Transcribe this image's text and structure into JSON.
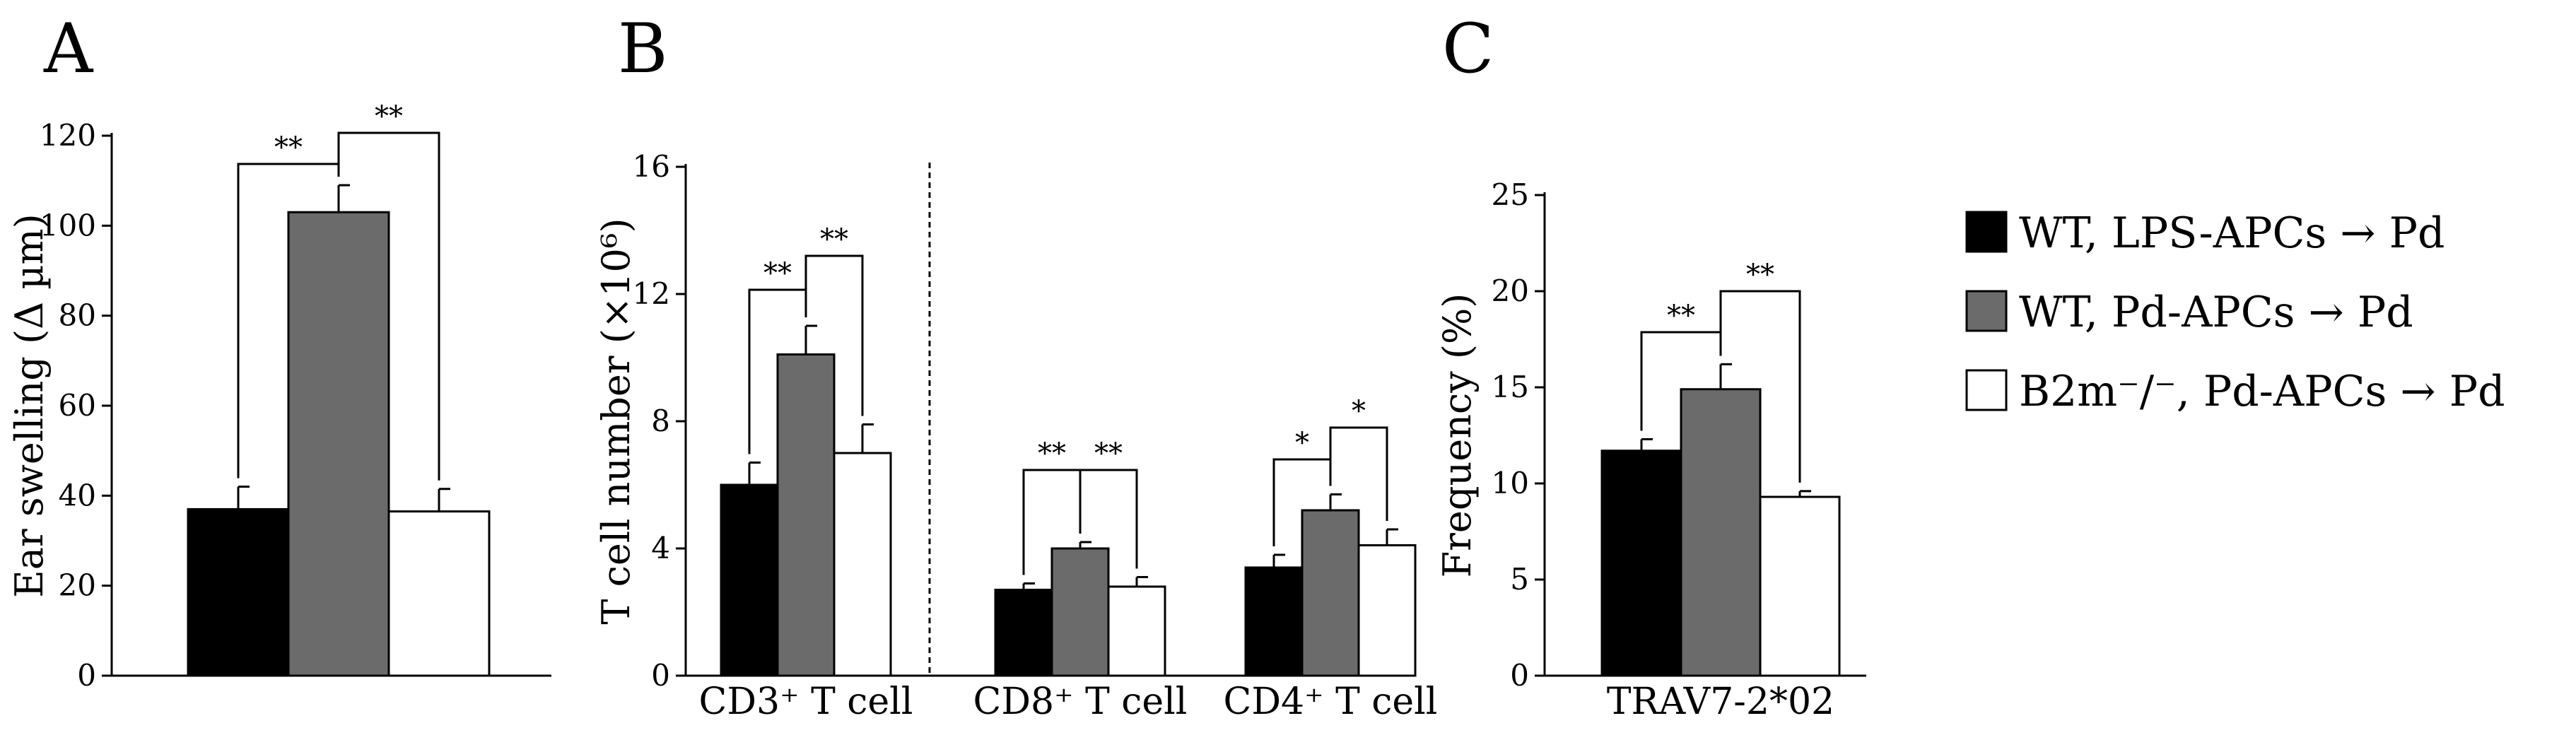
{
  "colors": {
    "black": "#000000",
    "gray": "#6b6b6b",
    "white": "#ffffff"
  },
  "legend": [
    {
      "label": "WT, LPS-APCs → Pd",
      "color": "#000000"
    },
    {
      "label": "WT, Pd-APCs → Pd",
      "color": "#6b6b6b"
    },
    {
      "label": "B2m⁻/⁻, Pd-APCs → Pd",
      "color": "#ffffff"
    }
  ],
  "chart_data": [
    {
      "panel": "A",
      "type": "bar",
      "ylabel": "Ear swelling (Δ µm)",
      "ylim": [
        0,
        120
      ],
      "yticks": [
        0,
        20,
        40,
        60,
        80,
        100,
        120
      ],
      "categories": [
        ""
      ],
      "series": [
        {
          "name": "WT, LPS-APCs → Pd",
          "values": [
            37
          ],
          "errors": [
            5
          ]
        },
        {
          "name": "WT, Pd-APCs → Pd",
          "values": [
            103
          ],
          "errors": [
            6
          ]
        },
        {
          "name": "B2m-/-, Pd-APCs → Pd",
          "values": [
            36.5
          ],
          "errors": [
            5
          ]
        }
      ],
      "significance": [
        {
          "group": 0,
          "from": 0,
          "to": 1,
          "label": "**"
        },
        {
          "group": 0,
          "from": 1,
          "to": 2,
          "label": "**"
        }
      ]
    },
    {
      "panel": "B",
      "type": "bar",
      "ylabel": "T cell number (×10⁶)",
      "ylim": [
        0,
        16
      ],
      "yticks": [
        0,
        4,
        8,
        12,
        16
      ],
      "categories": [
        "CD3⁺ T cell",
        "CD8⁺ T cell",
        "CD4⁺ T cell"
      ],
      "separator_after_category": 0,
      "series": [
        {
          "name": "WT, LPS-APCs → Pd",
          "values": [
            6.0,
            2.7,
            3.4
          ],
          "errors": [
            0.7,
            0.2,
            0.4
          ]
        },
        {
          "name": "WT, Pd-APCs → Pd",
          "values": [
            10.1,
            4.0,
            5.2
          ],
          "errors": [
            0.9,
            0.2,
            0.5
          ]
        },
        {
          "name": "B2m-/-, Pd-APCs → Pd",
          "values": [
            7.0,
            2.8,
            4.1
          ],
          "errors": [
            0.9,
            0.3,
            0.5
          ]
        }
      ],
      "significance": [
        {
          "group": 0,
          "from": 0,
          "to": 1,
          "label": "**"
        },
        {
          "group": 0,
          "from": 1,
          "to": 2,
          "label": "**"
        },
        {
          "group": 1,
          "from": 0,
          "to": 1,
          "label": "**"
        },
        {
          "group": 1,
          "from": 1,
          "to": 2,
          "label": "**"
        },
        {
          "group": 2,
          "from": 0,
          "to": 1,
          "label": "*"
        },
        {
          "group": 2,
          "from": 1,
          "to": 2,
          "label": "*"
        }
      ]
    },
    {
      "panel": "C",
      "type": "bar",
      "ylabel": "Frequency (%)",
      "ylim": [
        0,
        25
      ],
      "yticks": [
        0,
        5,
        10,
        15,
        20,
        25
      ],
      "categories": [
        "TRAV7-2*02"
      ],
      "series": [
        {
          "name": "WT, LPS-APCs → Pd",
          "values": [
            11.7
          ],
          "errors": [
            0.6
          ]
        },
        {
          "name": "WT, Pd-APCs → Pd",
          "values": [
            14.9
          ],
          "errors": [
            1.3
          ]
        },
        {
          "name": "B2m-/-, Pd-APCs → Pd",
          "values": [
            9.3
          ],
          "errors": [
            0.3
          ]
        }
      ],
      "significance": [
        {
          "group": 0,
          "from": 0,
          "to": 1,
          "label": "**"
        },
        {
          "group": 0,
          "from": 1,
          "to": 2,
          "label": "**"
        }
      ]
    }
  ]
}
